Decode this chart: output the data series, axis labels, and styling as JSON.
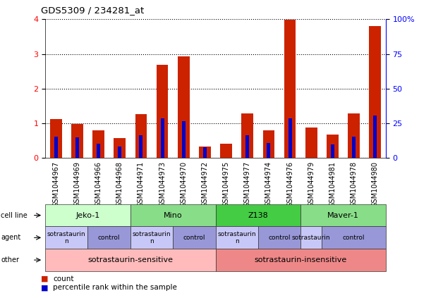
{
  "title": "GDS5309 / 234281_at",
  "samples": [
    "GSM1044967",
    "GSM1044969",
    "GSM1044966",
    "GSM1044968",
    "GSM1044971",
    "GSM1044973",
    "GSM1044970",
    "GSM1044972",
    "GSM1044975",
    "GSM1044977",
    "GSM1044974",
    "GSM1044976",
    "GSM1044979",
    "GSM1044981",
    "GSM1044978",
    "GSM1044980"
  ],
  "count_values": [
    1.13,
    0.97,
    0.8,
    0.58,
    1.27,
    2.68,
    2.93,
    0.32,
    0.42,
    1.28,
    0.8,
    3.98,
    0.88,
    0.68,
    1.28,
    3.8
  ],
  "percentile_values": [
    15.5,
    15.0,
    10.5,
    8.0,
    16.5,
    28.5,
    26.5,
    7.5,
    0.0,
    16.5,
    11.0,
    28.5,
    0.0,
    10.0,
    15.5,
    30.5
  ],
  "ylim_left": [
    0,
    4
  ],
  "ylim_right": [
    0,
    100
  ],
  "yticks_left": [
    0,
    1,
    2,
    3,
    4
  ],
  "yticks_right": [
    0,
    25,
    50,
    75,
    100
  ],
  "bar_color_red": "#cc2200",
  "bar_color_blue": "#0000cc",
  "cell_line_groups": [
    {
      "label": "Jeko-1",
      "start": 0,
      "end": 4,
      "color": "#ccffcc"
    },
    {
      "label": "Mino",
      "start": 4,
      "end": 8,
      "color": "#88dd88"
    },
    {
      "label": "Z138",
      "start": 8,
      "end": 12,
      "color": "#44cc44"
    },
    {
      "label": "Maver-1",
      "start": 12,
      "end": 16,
      "color": "#88dd88"
    }
  ],
  "agent_groups": [
    {
      "label": "sotrastaurin\nn",
      "start": 0,
      "end": 2,
      "color": "#c8c8f8"
    },
    {
      "label": "control",
      "start": 2,
      "end": 4,
      "color": "#9898d8"
    },
    {
      "label": "sotrastaurin\nn",
      "start": 4,
      "end": 6,
      "color": "#c8c8f8"
    },
    {
      "label": "control",
      "start": 6,
      "end": 8,
      "color": "#9898d8"
    },
    {
      "label": "sotrastaurin\nn",
      "start": 8,
      "end": 10,
      "color": "#c8c8f8"
    },
    {
      "label": "control",
      "start": 10,
      "end": 12,
      "color": "#9898d8"
    },
    {
      "label": "sotrastaurin",
      "start": 12,
      "end": 13,
      "color": "#c8c8f8"
    },
    {
      "label": "control",
      "start": 13,
      "end": 16,
      "color": "#9898d8"
    }
  ],
  "other_groups": [
    {
      "label": "sotrastaurin-sensitive",
      "start": 0,
      "end": 8,
      "color": "#ffbbbb"
    },
    {
      "label": "sotrastaurin-insensitive",
      "start": 8,
      "end": 16,
      "color": "#ee8888"
    }
  ],
  "row_labels": [
    "cell line",
    "agent",
    "other"
  ],
  "legend_items": [
    {
      "color": "#cc2200",
      "label": "count"
    },
    {
      "color": "#0000cc",
      "label": "percentile rank within the sample"
    }
  ]
}
